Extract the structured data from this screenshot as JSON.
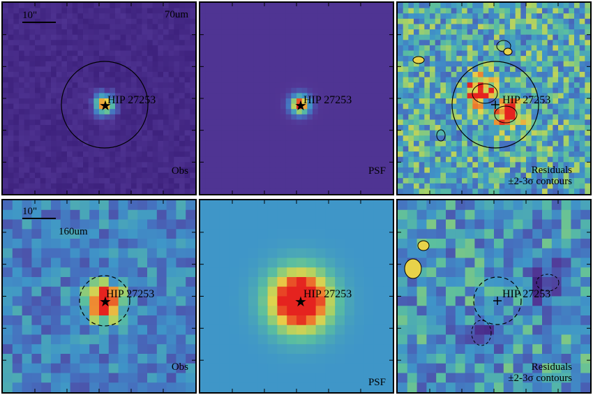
{
  "colors": {
    "frame": "#000000",
    "cmap_low": "#3b1f7a",
    "cmap_mid": "#3f8fc0",
    "cmap_high": "#e8d24a",
    "cmap_peak": "#e5231f"
  },
  "source_name": "HIP 27253",
  "contour_legend": [
    "Residuals",
    "±2-3σ contours"
  ],
  "panels": [
    {
      "id": "obs70",
      "wavelength": "70um",
      "scale_label": "10\"",
      "kind": "Obs"
    },
    {
      "id": "psf70",
      "kind": "PSF"
    },
    {
      "id": "res70",
      "kind": "Residuals"
    },
    {
      "id": "obs160",
      "wavelength": "160um",
      "scale_label": "10\"",
      "kind": "Obs"
    },
    {
      "id": "psf160",
      "kind": "PSF"
    },
    {
      "id": "res160",
      "kind": "Residuals"
    }
  ]
}
